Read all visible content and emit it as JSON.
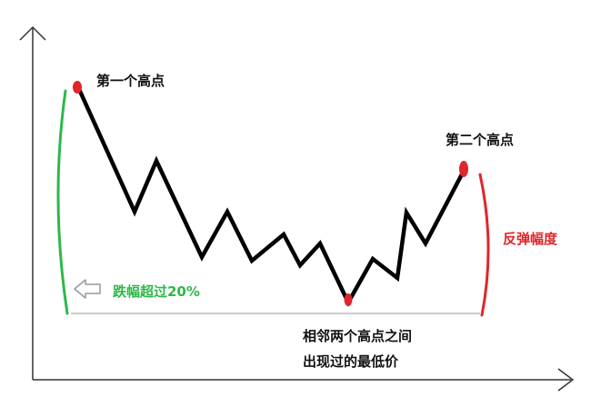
{
  "labels": {
    "first_high": "第一个高点",
    "second_high": "第二个高点",
    "rebound": "反弹幅度",
    "drop": "跌幅超过20%",
    "lowest_line1": "相邻两个高点之间",
    "lowest_line2": "出现过的最低价"
  },
  "colors": {
    "price_line": "#000000",
    "peak_marker": "#e0262b",
    "drop_bracket": "#2db84a",
    "rebound_bracket": "#e0262b",
    "axis": "#333333",
    "baseline": "#9a9a9a",
    "hint_arrow": "#999999"
  },
  "icons": {
    "drop_pointer": "left-arrow-outline-icon"
  }
}
